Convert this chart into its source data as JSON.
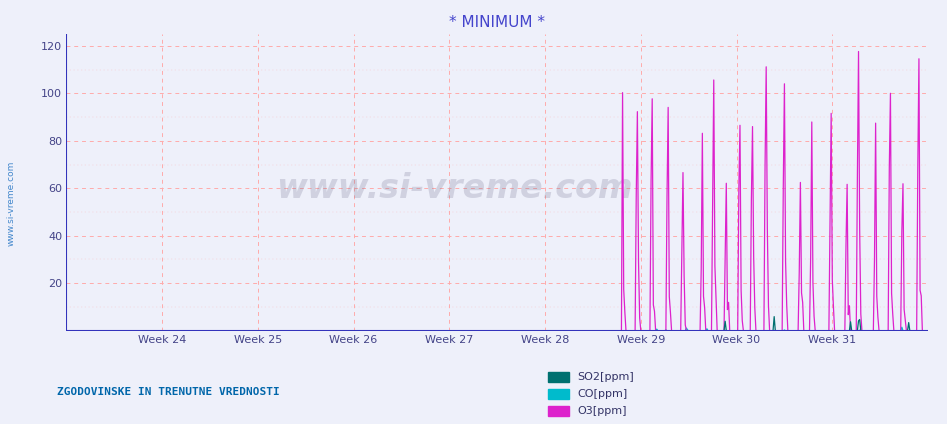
{
  "title": "* MINIMUM *",
  "title_color": "#4444cc",
  "bg_color": "#eef0fa",
  "plot_bg_color": "#eef0fa",
  "ylim": [
    0,
    125
  ],
  "yticks": [
    20,
    40,
    60,
    80,
    100,
    120
  ],
  "x_weeks": [
    "Week 24",
    "Week 25",
    "Week 26",
    "Week 27",
    "Week 28",
    "Week 29",
    "Week 30",
    "Week 31"
  ],
  "week_positions": [
    84,
    168,
    252,
    336,
    420,
    504,
    588,
    672
  ],
  "week_vlines": [
    0,
    84,
    168,
    252,
    336,
    420,
    504,
    588,
    672,
    756
  ],
  "n_points": 756,
  "so2_color": "#007070",
  "co_color": "#00bbcc",
  "o3_color": "#dd22cc",
  "grid_h_color": "#ffaaaa",
  "grid_v_color": "#ffaaaa",
  "axis_color": "#3333bb",
  "bottom_text": "ZGODOVINSKE IN TRENUTNE VREDNOSTI",
  "bottom_text_color": "#0066aa",
  "legend_labels": [
    "SO2[ppm]",
    "CO[ppm]",
    "O3[ppm]"
  ],
  "legend_colors": [
    "#007070",
    "#00bbcc",
    "#dd22cc"
  ],
  "watermark": "www.si-vreme.com",
  "watermark_color": "#666688",
  "sidebar_text": "www.si-vreme.com",
  "sidebar_color": "#4488cc"
}
